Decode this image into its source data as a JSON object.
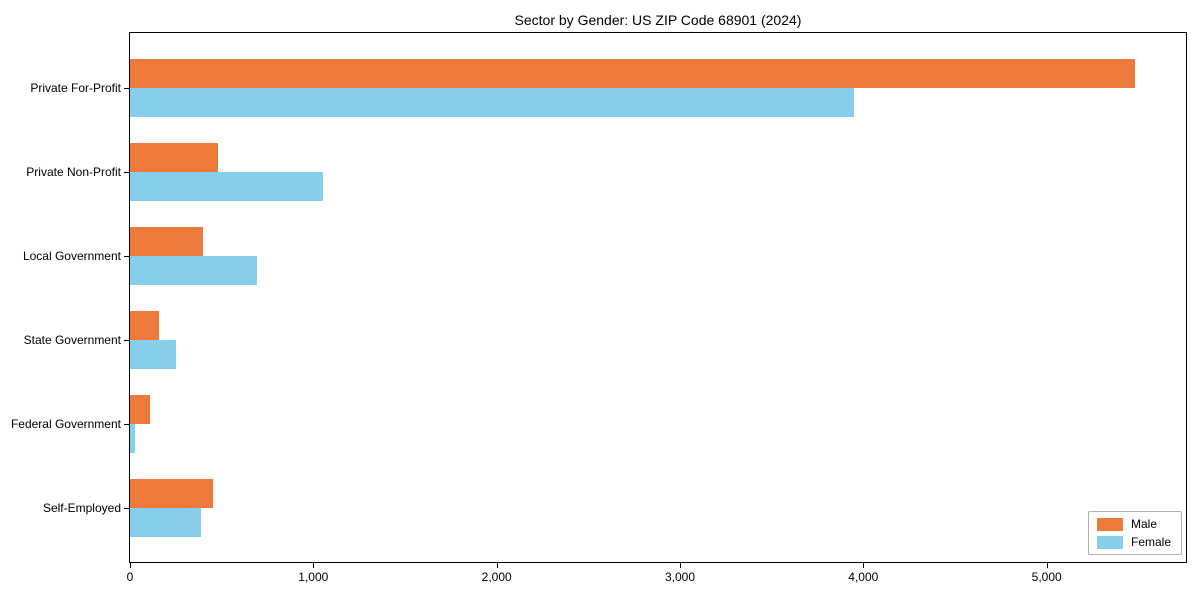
{
  "chart_data": {
    "type": "bar",
    "orientation": "horizontal",
    "title": "Sector by Gender: US ZIP Code 68901 (2024)",
    "categories": [
      "Private For-Profit",
      "Private Non-Profit",
      "Local Government",
      "State Government",
      "Federal Government",
      "Self-Employed"
    ],
    "series": [
      {
        "name": "Male",
        "color": "#EC7B3B",
        "values": [
          5480,
          480,
          400,
          160,
          110,
          450
        ]
      },
      {
        "name": "Female",
        "color": "#87CEEB",
        "values": [
          3950,
          1055,
          695,
          250,
          25,
          385
        ]
      }
    ],
    "xlabel": "",
    "ylabel": "",
    "xlim": [
      0,
      5760
    ],
    "xticks": [
      0,
      1000,
      2000,
      3000,
      4000,
      5000
    ],
    "xtick_labels": [
      "0",
      "1,000",
      "2,000",
      "3,000",
      "4,000",
      "5,000"
    ],
    "grid": false,
    "legend": {
      "position": "lower right"
    }
  }
}
